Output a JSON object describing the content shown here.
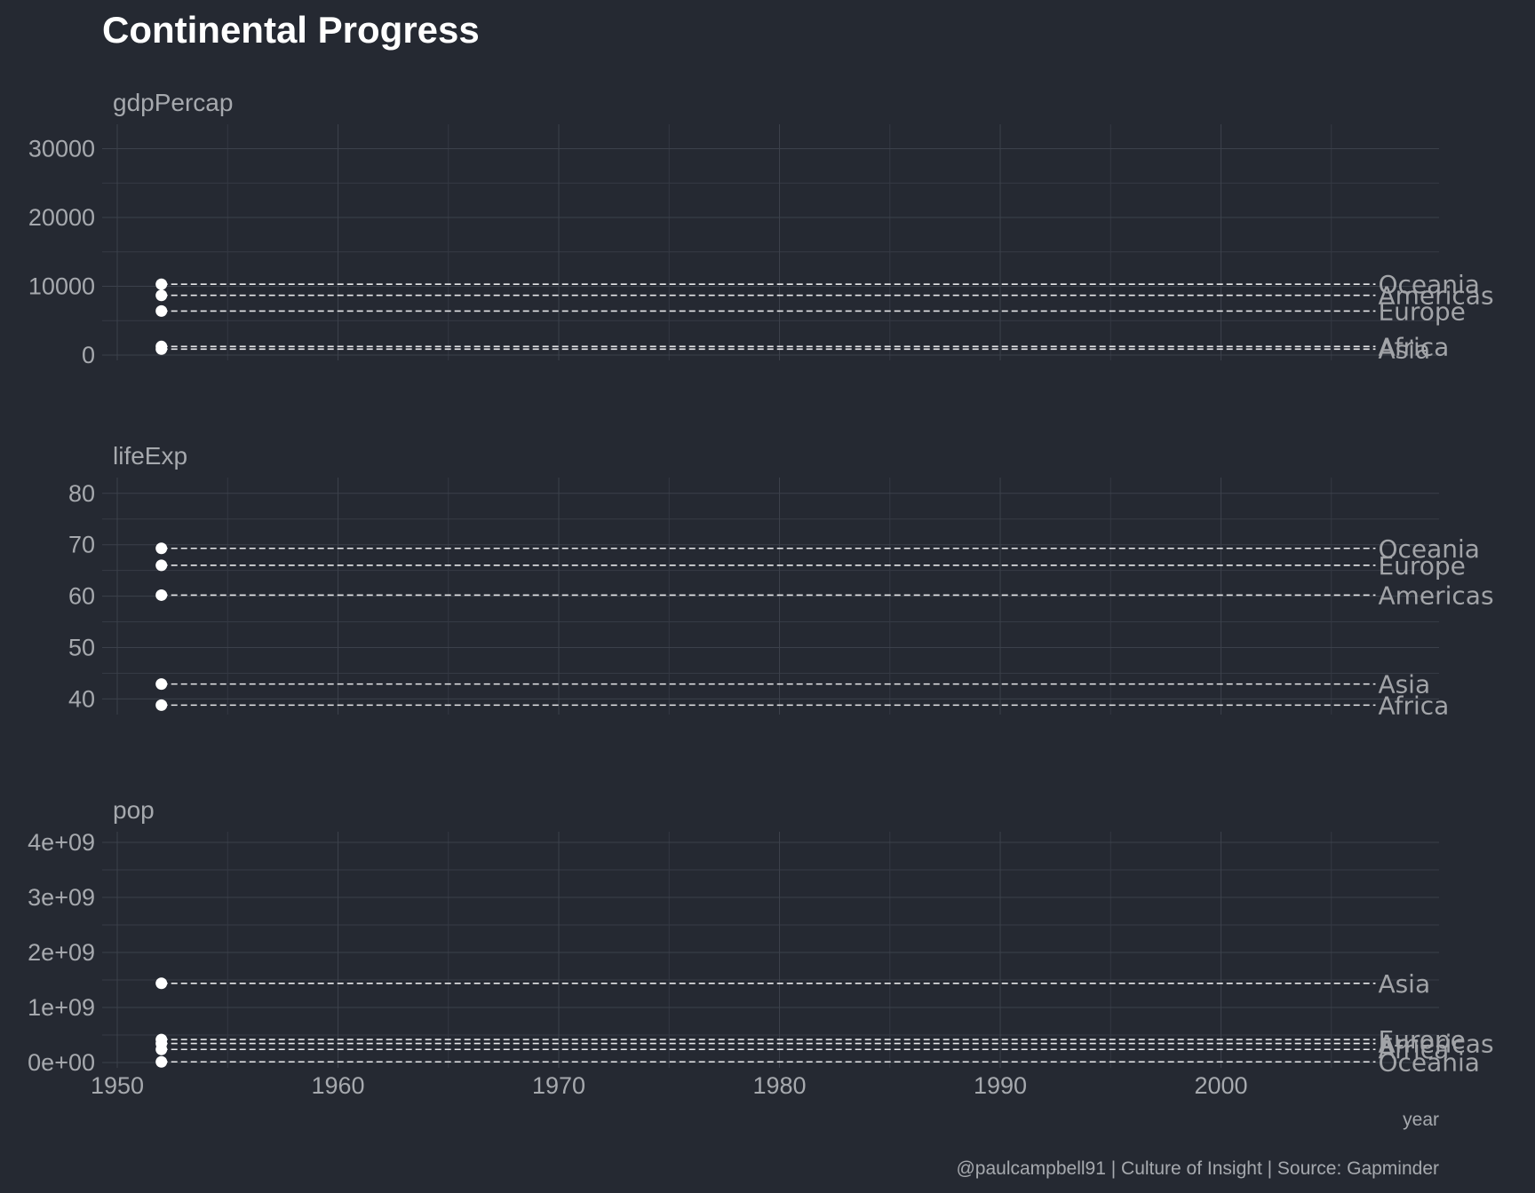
{
  "chart_data": {
    "type": "scatter",
    "title": "Continental Progress",
    "xlabel": "year",
    "caption": "@paulcampbell91 | Culture of Insight | Source: Gapminder",
    "x_ticks": [
      1950,
      1960,
      1970,
      1980,
      1990,
      2000
    ],
    "xlim": [
      1950,
      2010
    ],
    "point_year": 1952,
    "label_year": 2007,
    "facets": [
      {
        "name": "gdpPercap",
        "ylim": [
          0,
          32000
        ],
        "y_ticks": [
          0,
          10000,
          20000,
          30000
        ],
        "y_tick_labels": [
          "0",
          "10000",
          "20000",
          "30000"
        ],
        "points": [
          {
            "continent": "Oceania",
            "value": 10298
          },
          {
            "continent": "Americas",
            "value": 8680
          },
          {
            "continent": "Europe",
            "value": 6400
          },
          {
            "continent": "Africa",
            "value": 1253
          },
          {
            "continent": "Asia",
            "value": 865
          }
        ]
      },
      {
        "name": "lifeExp",
        "ylim": [
          38,
          81
        ],
        "y_ticks": [
          40,
          50,
          60,
          70,
          80
        ],
        "y_tick_labels": [
          "40",
          "50",
          "60",
          "70",
          "80"
        ],
        "points": [
          {
            "continent": "Oceania",
            "value": 69.3
          },
          {
            "continent": "Europe",
            "value": 66.0
          },
          {
            "continent": "Americas",
            "value": 60.2
          },
          {
            "continent": "Asia",
            "value": 42.9
          },
          {
            "continent": "Africa",
            "value": 38.8
          }
        ]
      },
      {
        "name": "pop",
        "ylim": [
          0,
          4000000000
        ],
        "y_ticks": [
          0,
          1000000000,
          2000000000,
          3000000000,
          4000000000
        ],
        "y_tick_labels": [
          "0e+00",
          "1e+09",
          "2e+09",
          "3e+09",
          "4e+09"
        ],
        "points": [
          {
            "continent": "Asia",
            "value": 1439000000
          },
          {
            "continent": "Europe",
            "value": 418000000
          },
          {
            "continent": "Americas",
            "value": 345000000
          },
          {
            "continent": "Africa",
            "value": 238000000
          },
          {
            "continent": "Oceania",
            "value": 12000000
          }
        ]
      }
    ]
  }
}
